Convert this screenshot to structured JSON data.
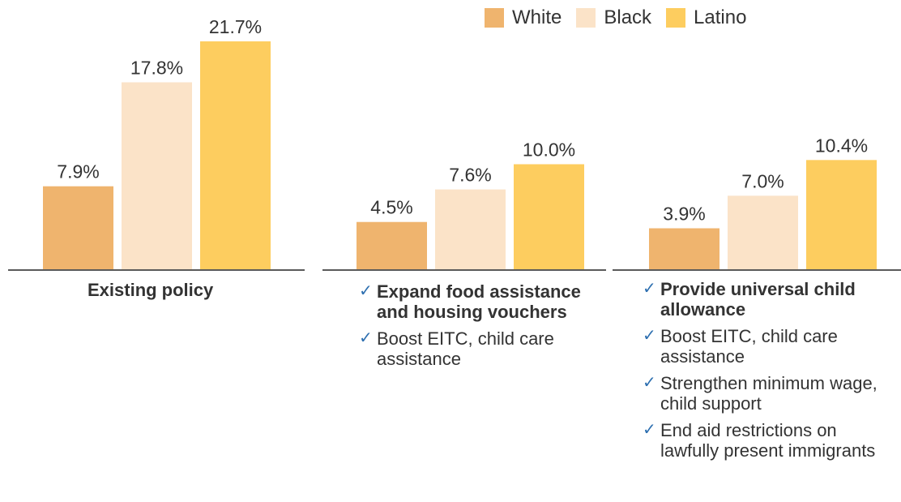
{
  "chart_data": {
    "type": "bar",
    "ylim": [
      0,
      24
    ],
    "series": [
      {
        "name": "White",
        "color": "#efb46e",
        "values": [
          7.9,
          4.5,
          3.9
        ]
      },
      {
        "name": "Black",
        "color": "#fbe3c8",
        "values": [
          17.8,
          7.6,
          7.0
        ]
      },
      {
        "name": "Latino",
        "color": "#fdcd5f",
        "values": [
          21.7,
          10.0,
          10.4
        ]
      }
    ],
    "value_labels": [
      [
        "7.9%",
        "4.5%",
        "3.9%"
      ],
      [
        "17.8%",
        "7.6%",
        "7.0%"
      ],
      [
        "21.7%",
        "10.0%",
        "10.4%"
      ]
    ],
    "legend_position": "top-right",
    "groups": [
      {
        "label": "Existing policy",
        "items": []
      },
      {
        "label": "",
        "items": [
          {
            "text": "Expand food assistance and housing vouchers",
            "bold": true
          },
          {
            "text": "Boost EITC, child care assistance",
            "bold": false
          }
        ]
      },
      {
        "label": "",
        "items": [
          {
            "text": "Provide universal child allowance",
            "bold": true
          },
          {
            "text": "Boost EITC, child care assistance",
            "bold": false
          },
          {
            "text": "Strengthen minimum wage, child support",
            "bold": false
          },
          {
            "text": "End aid restrictions on lawfully present immigrants",
            "bold": false
          }
        ]
      }
    ],
    "check_symbol": "✓"
  },
  "legend": [
    {
      "label": "White",
      "color": "#efb46e"
    },
    {
      "label": "Black",
      "color": "#fbe3c8"
    },
    {
      "label": "Latino",
      "color": "#fdcd5f"
    }
  ]
}
